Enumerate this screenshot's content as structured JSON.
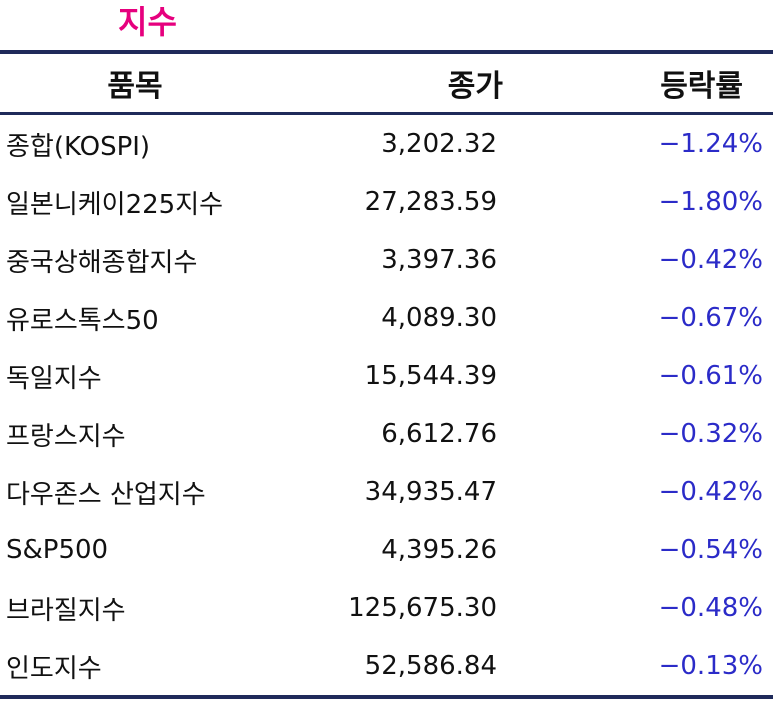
{
  "title": "지수",
  "table": {
    "headers": {
      "name": "품목",
      "price": "종가",
      "change": "등락률"
    },
    "rows": [
      {
        "name": "종합(KOSPI)",
        "price": "3,202.32",
        "change": "−1.24%"
      },
      {
        "name": "일본니케이225지수",
        "price": "27,283.59",
        "change": "−1.80%"
      },
      {
        "name": "중국상해종합지수",
        "price": "3,397.36",
        "change": "−0.42%"
      },
      {
        "name": "유로스톡스50",
        "price": "4,089.30",
        "change": "−0.67%"
      },
      {
        "name": "독일지수",
        "price": "15,544.39",
        "change": "−0.61%"
      },
      {
        "name": "프랑스지수",
        "price": "6,612.76",
        "change": "−0.32%"
      },
      {
        "name": "다우존스 산업지수",
        "price": "34,935.47",
        "change": "−0.42%"
      },
      {
        "name": "S&P500",
        "price": "4,395.26",
        "change": "−0.54%"
      },
      {
        "name": "브라질지수",
        "price": "125,675.30",
        "change": "−0.48%"
      },
      {
        "name": "인도지수",
        "price": "52,586.84",
        "change": "−0.13%"
      }
    ]
  },
  "colors": {
    "title": "#e6007e",
    "rule": "#1f2a5a",
    "change_text": "#2b2bc8"
  }
}
